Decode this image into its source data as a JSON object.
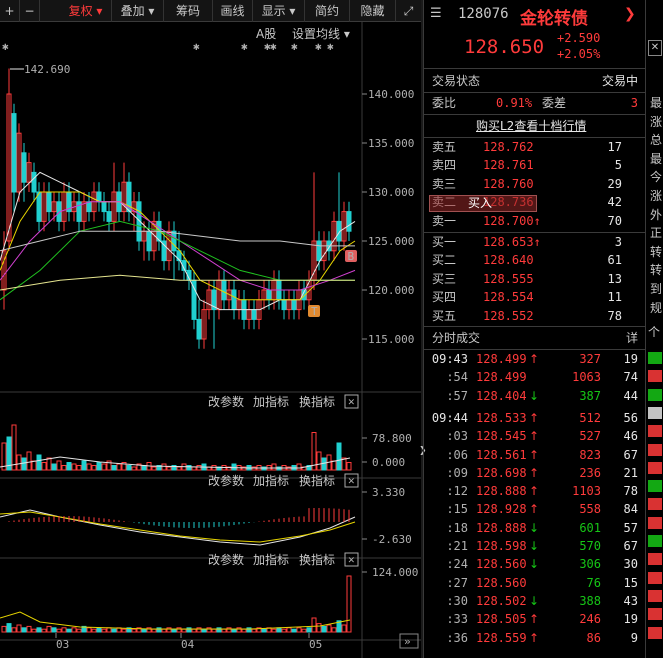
{
  "toolbar": {
    "items": [
      "+",
      "−",
      "复权",
      "叠加",
      "筹码",
      "画线",
      "显示",
      "简约",
      "隐藏"
    ],
    "fullscreen_icon": "expand-icon"
  },
  "chart": {
    "stock_type": "A股",
    "ma_settings": "设置均线",
    "max_label": "142.690",
    "price_ticks": [
      "140.000",
      "135.000",
      "130.000",
      "125.000",
      "120.000",
      "115.000"
    ],
    "markers": {
      "buy": "B",
      "t": "T"
    },
    "panel1": {
      "tools": [
        "改参数",
        "加指标",
        "换指标"
      ],
      "ticks": [
        "78.800",
        "0.000"
      ]
    },
    "panel2": {
      "tools": [
        "改参数",
        "加指标",
        "换指标"
      ],
      "ticks": [
        "3.330",
        "-2.630"
      ]
    },
    "panel3": {
      "tools": [
        "改参数",
        "加指标",
        "换指标"
      ],
      "ticks": [
        "124.000"
      ]
    },
    "x_ticks": [
      "03",
      "04",
      "05"
    ]
  },
  "quote": {
    "code": "128076",
    "name": "金轮转债",
    "price": "128.650",
    "change": "+2.590",
    "change_pct": "+2.05%",
    "status_label": "交易状态",
    "status_value": "交易中",
    "wb_label": "委比",
    "wb_value": "0.91%",
    "wc_label": "委差",
    "wc_value": "3",
    "l2_link": "购买L2查看十档行情",
    "popup_label": "买入",
    "asks": [
      {
        "label": "卖五",
        "price": "128.762",
        "vol": "17"
      },
      {
        "label": "卖四",
        "price": "128.761",
        "vol": "5"
      },
      {
        "label": "卖三",
        "price": "128.760",
        "vol": "29"
      },
      {
        "label": "卖二",
        "price": "128.736",
        "vol": "42"
      },
      {
        "label": "卖一",
        "price": "128.700",
        "vol": "70",
        "arrow": "up"
      }
    ],
    "bids": [
      {
        "label": "买一",
        "price": "128.653",
        "vol": "3",
        "arrow": "up"
      },
      {
        "label": "买二",
        "price": "128.640",
        "vol": "61"
      },
      {
        "label": "买三",
        "price": "128.555",
        "vol": "13"
      },
      {
        "label": "买四",
        "price": "128.554",
        "vol": "11"
      },
      {
        "label": "买五",
        "price": "128.552",
        "vol": "78"
      }
    ],
    "trades_title": "分时成交",
    "trades_detail": "详",
    "trades": [
      {
        "time": "09:43",
        "price": "128.499",
        "arrow": "up",
        "vol": "327",
        "cnt": "19",
        "pc": "red",
        "vc": "red"
      },
      {
        "time": ":54",
        "price": "128.499",
        "arrow": "",
        "vol": "1063",
        "cnt": "74",
        "pc": "red",
        "vc": "red"
      },
      {
        "time": ":57",
        "price": "128.404",
        "arrow": "down",
        "vol": "387",
        "cnt": "44",
        "pc": "red",
        "vc": "green"
      },
      {
        "time": "09:44",
        "price": "128.533",
        "arrow": "up",
        "vol": "512",
        "cnt": "56",
        "pc": "red",
        "vc": "red"
      },
      {
        "time": ":03",
        "price": "128.545",
        "arrow": "up",
        "vol": "527",
        "cnt": "46",
        "pc": "red",
        "vc": "red"
      },
      {
        "time": ":06",
        "price": "128.561",
        "arrow": "up",
        "vol": "823",
        "cnt": "67",
        "pc": "red",
        "vc": "red"
      },
      {
        "time": ":09",
        "price": "128.698",
        "arrow": "up",
        "vol": "236",
        "cnt": "21",
        "pc": "red",
        "vc": "red"
      },
      {
        "time": ":12",
        "price": "128.888",
        "arrow": "up",
        "vol": "1103",
        "cnt": "78",
        "pc": "red",
        "vc": "red"
      },
      {
        "time": ":15",
        "price": "128.928",
        "arrow": "up",
        "vol": "558",
        "cnt": "84",
        "pc": "red",
        "vc": "red"
      },
      {
        "time": ":18",
        "price": "128.888",
        "arrow": "down",
        "vol": "601",
        "cnt": "57",
        "pc": "red",
        "vc": "green"
      },
      {
        "time": ":21",
        "price": "128.598",
        "arrow": "down",
        "vol": "570",
        "cnt": "67",
        "pc": "red",
        "vc": "green"
      },
      {
        "time": ":24",
        "price": "128.560",
        "arrow": "down",
        "vol": "306",
        "cnt": "30",
        "pc": "red",
        "vc": "green"
      },
      {
        "time": ":27",
        "price": "128.560",
        "arrow": "",
        "vol": "76",
        "cnt": "15",
        "pc": "red",
        "vc": "green"
      },
      {
        "time": ":30",
        "price": "128.502",
        "arrow": "down",
        "vol": "388",
        "cnt": "43",
        "pc": "red",
        "vc": "green"
      },
      {
        "time": ":33",
        "price": "128.505",
        "arrow": "up",
        "vol": "246",
        "cnt": "19",
        "pc": "red",
        "vc": "red"
      },
      {
        "time": ":36",
        "price": "128.559",
        "arrow": "up",
        "vol": "86",
        "cnt": "9",
        "pc": "red",
        "vc": "red"
      }
    ]
  },
  "sidebar_chars": [
    "最",
    "涨",
    "总",
    "最",
    "今",
    "涨",
    "外",
    "正",
    "转",
    "转",
    "到",
    "规"
  ],
  "sidebar_tab": "个",
  "colors": {
    "up": "#ff3b3b",
    "down": "#16c616",
    "ma5": "#e6e6e6",
    "ma10": "#e6d400",
    "ma20": "#d040d0",
    "ma60": "#20c020",
    "ma120": "#c8c8c8",
    "ma250": "#e6e690"
  }
}
